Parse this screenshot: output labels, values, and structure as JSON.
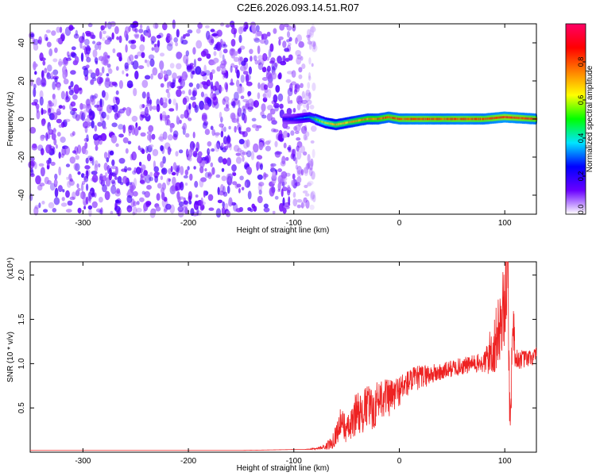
{
  "title": "C2E6.2026.093.14.51.R07",
  "chart_data": [
    {
      "type": "heatmap",
      "xlabel": "Height of straight line (km)",
      "ylabel": "Frequency (Hz)",
      "xlim": [
        -350,
        130
      ],
      "ylim": [
        -50,
        50
      ],
      "xticks": [
        -300,
        -200,
        -100,
        0,
        100
      ],
      "xtick_labels": [
        "-300",
        "-200",
        "-100",
        "0",
        "100"
      ],
      "yticks": [
        -40,
        -20,
        0,
        20,
        40
      ],
      "ytick_labels": [
        "-40",
        "-20",
        "0",
        "20",
        "40"
      ],
      "colorbar": {
        "label": "Normalized spectral amplitude",
        "range": [
          0,
          1
        ],
        "ticks": [
          0,
          0.2,
          0.4,
          0.6,
          0.8
        ],
        "tick_labels": [
          "0.0",
          "0.2",
          "0.4",
          "0.6",
          "0.8"
        ],
        "colors": [
          "#ffffff",
          "#6a00ff",
          "#0000ff",
          "#00e5ff",
          "#00ff00",
          "#ffff00",
          "#ff7f00",
          "#ff0000",
          "#ff0066"
        ]
      },
      "noise_region_x": [
        -350,
        -80
      ],
      "noise_amplitude": [
        0.05,
        0.18
      ],
      "ridge": {
        "x": [
          -110,
          -100,
          -85,
          -80,
          -70,
          -60,
          -50,
          -40,
          -30,
          -20,
          -10,
          0,
          20,
          40,
          60,
          80,
          100,
          130
        ],
        "frequency": [
          0,
          0,
          1,
          0,
          -2,
          -3,
          -2,
          -1,
          0,
          0,
          1,
          0,
          0,
          0,
          0,
          0,
          1,
          0
        ],
        "amplitude": [
          0.25,
          0.3,
          0.45,
          0.55,
          0.65,
          0.75,
          0.75,
          0.8,
          0.82,
          0.85,
          0.88,
          0.9,
          0.92,
          0.9,
          0.92,
          0.9,
          0.95,
          0.9
        ]
      },
      "grid": false
    },
    {
      "type": "line",
      "xlabel": "Height of straight line (km)",
      "ylabel": "SNR (10 * v/v)",
      "y_scale_label": "(x10⁴)",
      "xlim": [
        -350,
        130
      ],
      "ylim": [
        0,
        2.15
      ],
      "xticks": [
        -300,
        -200,
        -100,
        0,
        100
      ],
      "xtick_labels": [
        "-300",
        "-200",
        "-100",
        "0",
        "100"
      ],
      "yticks": [
        0.5,
        1.0,
        1.5,
        2.0
      ],
      "ytick_labels": [
        "0.5",
        "1.0",
        "1.5",
        "2.0"
      ],
      "color": "#ee2222",
      "series": [
        {
          "x": [
            -350,
            -300,
            -250,
            -200,
            -150,
            -100,
            -90,
            -80,
            -70,
            -65,
            -60,
            -55,
            -50,
            -45,
            -40,
            -35,
            -30,
            -25,
            -20,
            -15,
            -10,
            -5,
            0,
            10,
            20,
            30,
            40,
            50,
            60,
            70,
            80,
            85,
            90,
            95,
            100,
            103,
            105,
            108,
            110,
            120,
            130
          ],
          "y": [
            0.02,
            0.02,
            0.02,
            0.02,
            0.02,
            0.03,
            0.03,
            0.04,
            0.06,
            0.1,
            0.2,
            0.35,
            0.25,
            0.3,
            0.5,
            0.4,
            0.55,
            0.45,
            0.6,
            0.65,
            0.6,
            0.65,
            0.7,
            0.8,
            0.85,
            0.88,
            0.9,
            0.95,
            0.97,
            1.0,
            1.0,
            1.1,
            1.2,
            1.4,
            1.7,
            2.1,
            0.2,
            1.6,
            1.05,
            1.05,
            1.08
          ],
          "noise": [
            0.0,
            0.0,
            0.0,
            0.0,
            0.0,
            0.0,
            0.0,
            0.01,
            0.03,
            0.08,
            0.12,
            0.18,
            0.15,
            0.2,
            0.25,
            0.22,
            0.28,
            0.22,
            0.25,
            0.25,
            0.22,
            0.2,
            0.18,
            0.15,
            0.14,
            0.12,
            0.1,
            0.1,
            0.1,
            0.1,
            0.12,
            0.25,
            0.35,
            0.4,
            0.5,
            0.6,
            0.3,
            0.4,
            0.12,
            0.1,
            0.1
          ]
        }
      ],
      "grid": false
    }
  ]
}
